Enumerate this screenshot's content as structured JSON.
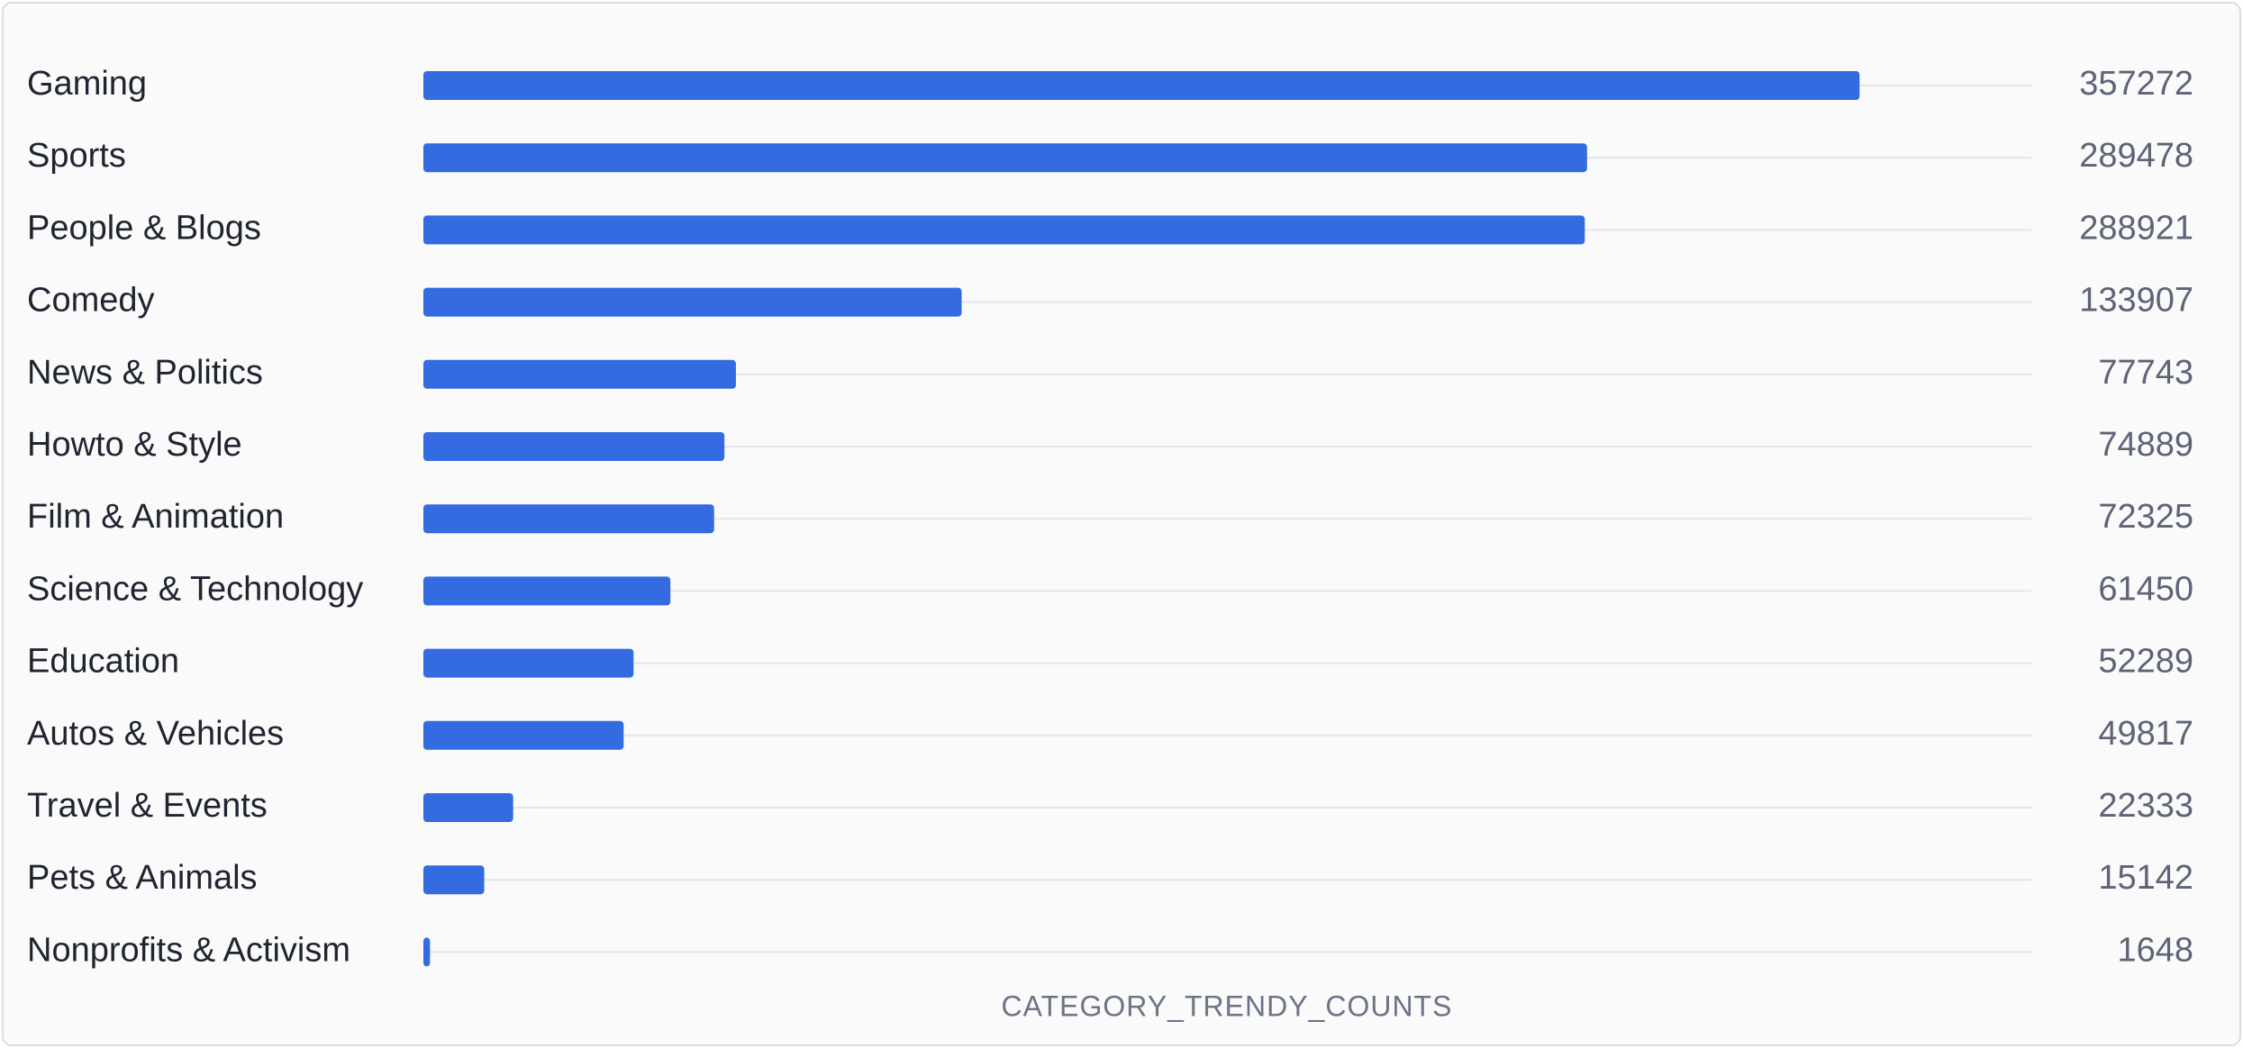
{
  "chart_data": {
    "type": "bar",
    "orientation": "horizontal",
    "x_label": "CATEGORY_TRENDY_COUNTS",
    "categories": [
      "Gaming",
      "Sports",
      "People & Blogs",
      "Comedy",
      "News & Politics",
      "Howto & Style",
      "Film & Animation",
      "Science & Technology",
      "Education",
      "Autos & Vehicles",
      "Travel & Events",
      "Pets & Animals",
      "Nonprofits & Activism"
    ],
    "values": [
      357272,
      289478,
      288921,
      133907,
      77743,
      74889,
      72325,
      61450,
      52289,
      49817,
      22333,
      15142,
      1648
    ],
    "color": "#346be0",
    "xlim": [
      0,
      400000
    ]
  }
}
